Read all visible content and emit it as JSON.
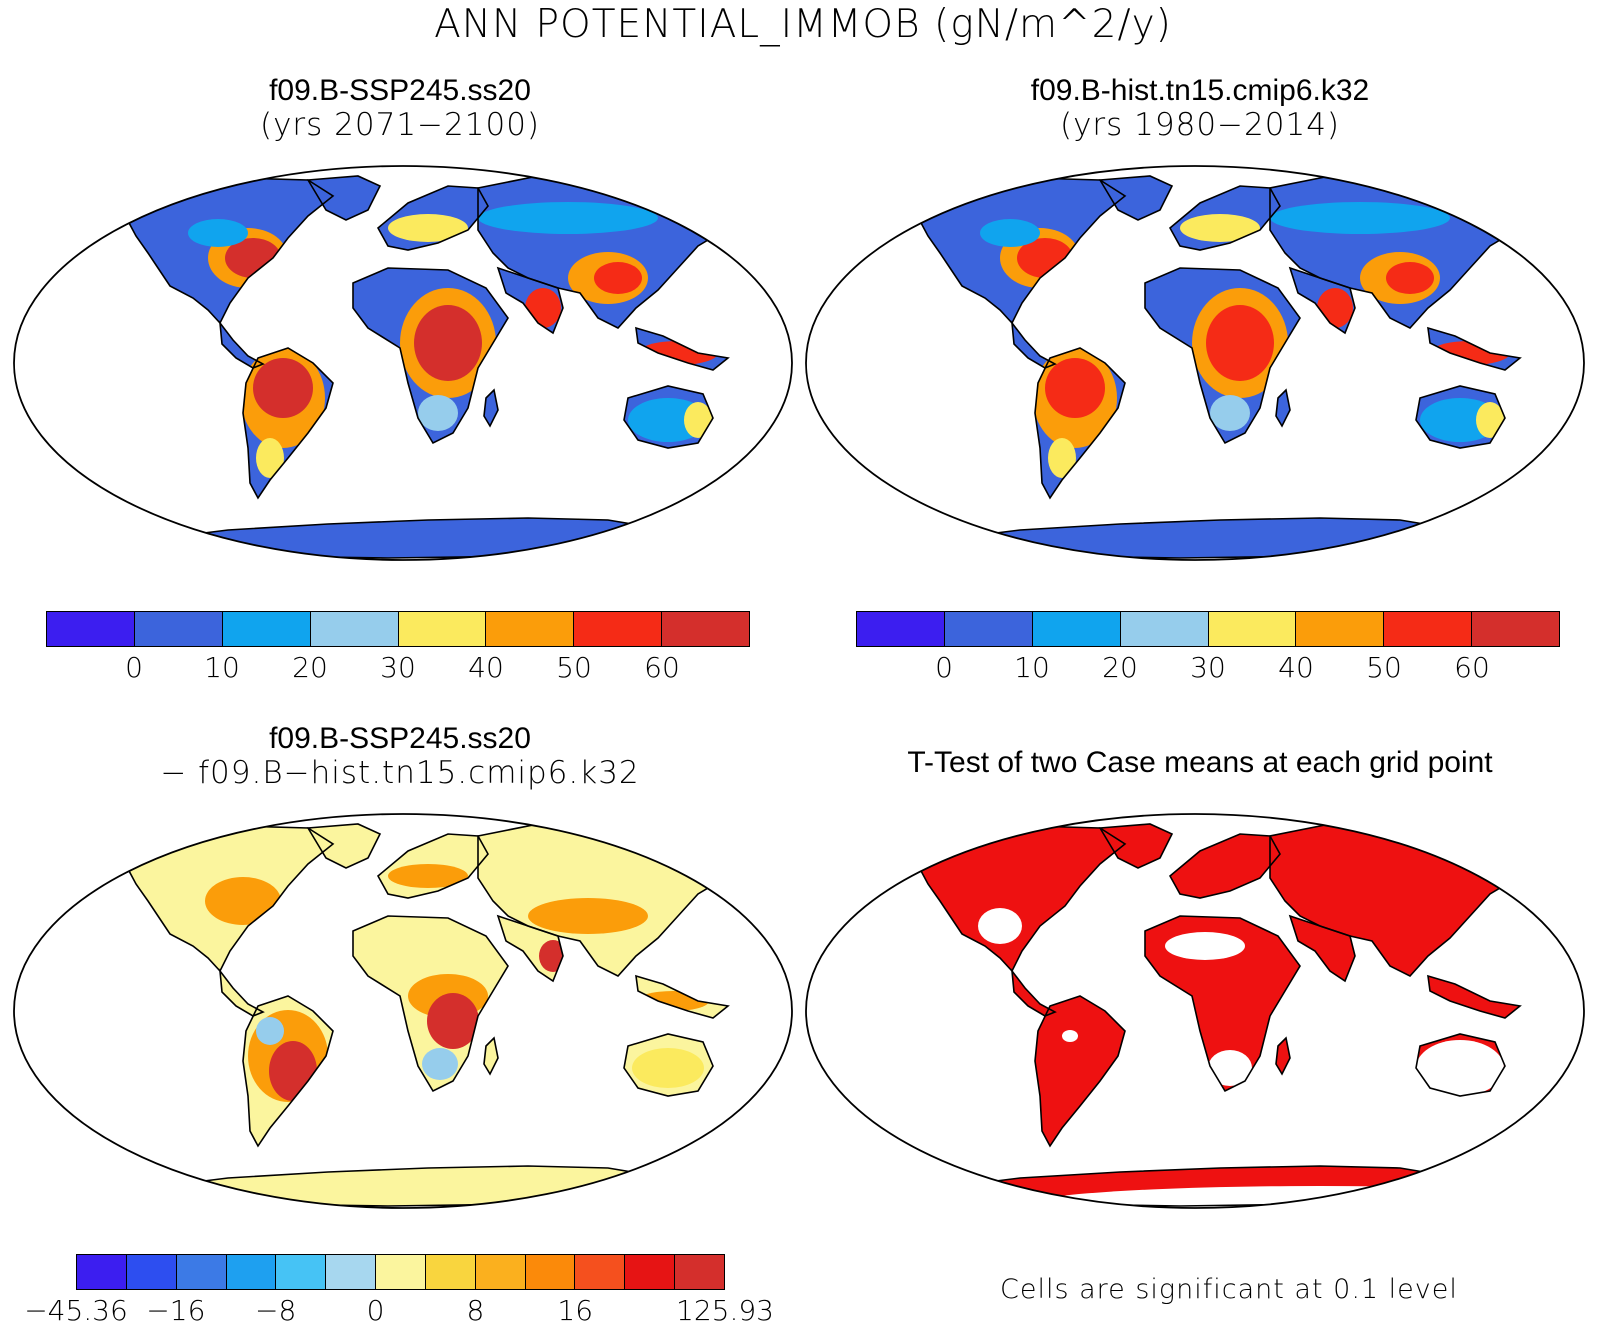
{
  "main_title": "ANN POTENTIAL_IMMOB (gN/m^2/y)",
  "panels": {
    "top_left": {
      "title_line1": "f09.B-SSP245.ss20",
      "title_line2": "(yrs 2071−2100)"
    },
    "top_right": {
      "title_line1": "f09.B-hist.tn15.cmip6.k32",
      "title_line2": "(yrs 1980−2014)"
    },
    "bottom_left": {
      "title_line1": "f09.B-SSP245.ss20",
      "title_line2": "− f09.B−hist.tn15.cmip6.k32"
    },
    "bottom_right": {
      "title_line1": "T-Test of two Case means at each grid point",
      "note": "Cells are significant at 0.1 level"
    }
  },
  "colorbar_abs": {
    "colors": [
      "#3c1ef0",
      "#3c64dc",
      "#10a4ee",
      "#96cdec",
      "#fbea5e",
      "#fb9d0a",
      "#f52b16",
      "#d42f2c"
    ],
    "ticks": [
      "0",
      "10",
      "20",
      "30",
      "40",
      "50",
      "60"
    ]
  },
  "colorbar_diff": {
    "colors": [
      "#3c1ef0",
      "#2d4ef0",
      "#3c7ae6",
      "#1ea0f0",
      "#46c3f5",
      "#a7d7ef",
      "#fbf59e",
      "#f9d53e",
      "#fbb01e",
      "#fb8a0a",
      "#f5501e",
      "#e61414",
      "#d42f2c"
    ],
    "ticks": [
      "−45.36",
      "−16",
      "−8",
      "0",
      "8",
      "16",
      "125.93"
    ]
  },
  "map_colors": {
    "ocean": "#ffffff",
    "low": "#3c64dc",
    "mid_low": "#10a4ee",
    "light": "#96cdec",
    "yellow": "#fbea5e",
    "orange": "#fb9d0a",
    "red": "#f52b16",
    "dark_red": "#d42f2c",
    "diff_base": "#fbf59e",
    "signif": "#ee1111"
  }
}
